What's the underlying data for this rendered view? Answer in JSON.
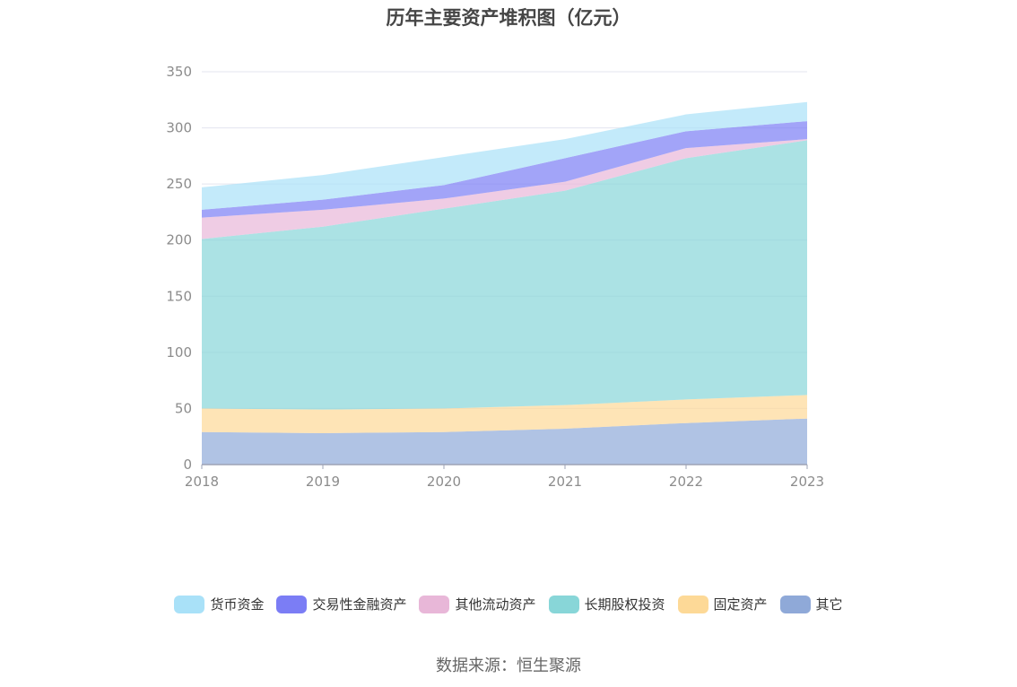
{
  "title": "历年主要资产堆积图（亿元）",
  "source": "数据来源：恒生聚源",
  "chart_data": {
    "type": "area",
    "stacked": true,
    "x": [
      "2018",
      "2019",
      "2020",
      "2021",
      "2022",
      "2023"
    ],
    "ylim": [
      0,
      350
    ],
    "yticks": [
      0,
      50,
      100,
      150,
      200,
      250,
      300,
      350
    ],
    "grid": true,
    "legend_position": "bottom",
    "series": [
      {
        "name": "其它",
        "color": "#8fa9d8",
        "values": [
          29,
          28,
          29,
          32,
          37,
          41
        ]
      },
      {
        "name": "固定资产",
        "color": "#fdd997",
        "values": [
          21,
          21,
          21,
          21,
          21,
          21
        ]
      },
      {
        "name": "长期股权投资",
        "color": "#88d6d8",
        "values": [
          151,
          163,
          178,
          191,
          215,
          227
        ]
      },
      {
        "name": "其他流动资产",
        "color": "#e8b7d8",
        "values": [
          19,
          15,
          9,
          8,
          9,
          1
        ]
      },
      {
        "name": "交易性金融资产",
        "color": "#7b7df5",
        "values": [
          7,
          9,
          12,
          21,
          15,
          16
        ]
      },
      {
        "name": "货币资金",
        "color": "#a9e1f8",
        "values": [
          20,
          22,
          25,
          17,
          15,
          17
        ]
      }
    ],
    "legend_order": [
      "货币资金",
      "交易性金融资产",
      "其他流动资产",
      "长期股权投资",
      "固定资产",
      "其它"
    ]
  }
}
